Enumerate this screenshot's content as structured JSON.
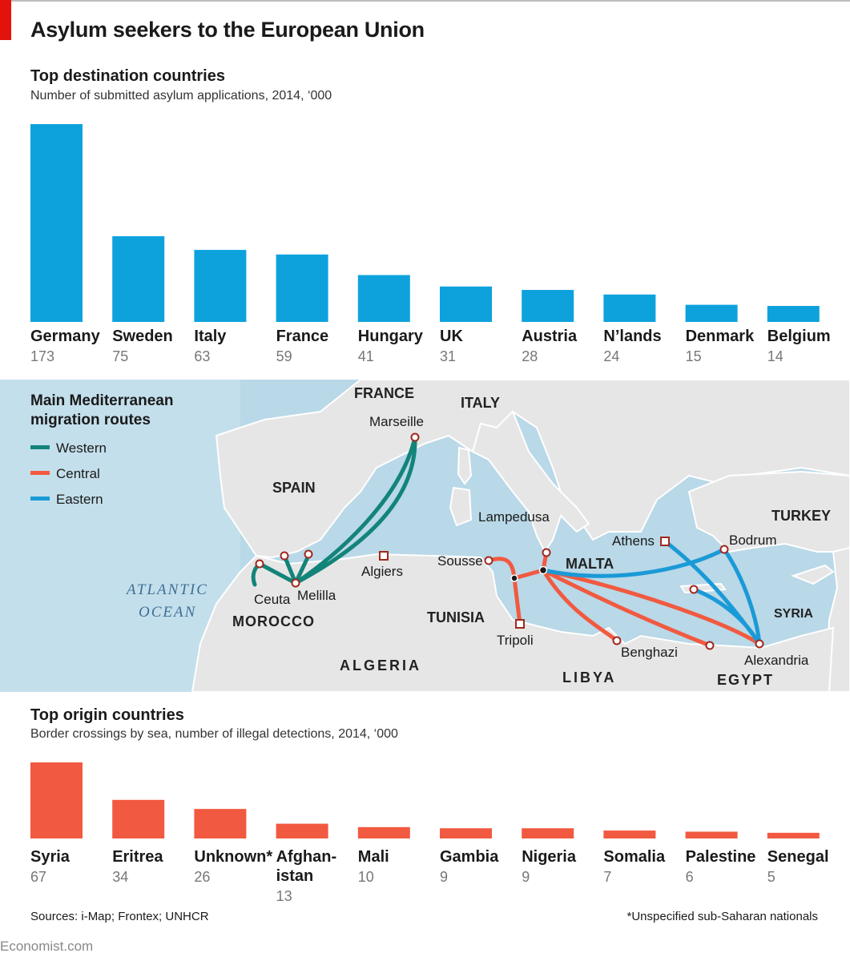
{
  "title": "Asylum seekers to the European Union",
  "colors": {
    "destination": "#0ea2dd",
    "origin": "#f15a40",
    "western": "#138479",
    "central": "#f15a40",
    "eastern": "#1a9ad6",
    "sea": "#b9d8e8",
    "land": "#e6e6e6",
    "accent": "#e3120b"
  },
  "chart_data": [
    {
      "type": "bar",
      "title": "Top destination countries",
      "subtitle": "Number of submitted asylum applications, 2014, ‘000",
      "categories": [
        "Germany",
        "Sweden",
        "Italy",
        "France",
        "Hungary",
        "UK",
        "Austria",
        "N’lands",
        "Denmark",
        "Belgium"
      ],
      "values": [
        173,
        75,
        63,
        59,
        41,
        31,
        28,
        24,
        15,
        14
      ],
      "value_labels": [
        "173",
        "75",
        "63",
        "59",
        "41",
        "31",
        "28",
        "24",
        "15",
        "14"
      ],
      "ylim": [
        0,
        173
      ],
      "grid": false
    },
    {
      "type": "bar",
      "title": "Top origin countries",
      "subtitle": "Border crossings by sea, number of illegal detections, 2014, ‘000",
      "categories": [
        "Syria",
        "Eritrea",
        "Unknown*",
        "Afghan-\nistan",
        "Mali",
        "Gambia",
        "Nigeria",
        "Somalia",
        "Palestine",
        "Senegal"
      ],
      "values": [
        67,
        34,
        26,
        13,
        10,
        9,
        9,
        7,
        6,
        5
      ],
      "value_labels": [
        "67",
        "34",
        "26",
        "13",
        "10",
        "9",
        "9",
        "7",
        "6",
        "5"
      ],
      "ylim": [
        0,
        67
      ],
      "grid": false
    }
  ],
  "map": {
    "legend_title_1": "Main Mediterranean",
    "legend_title_2": "migration routes",
    "legend": [
      "Western",
      "Central",
      "Eastern"
    ],
    "countries": {
      "france": "FRANCE",
      "italy": "ITALY",
      "spain": "SPAIN",
      "turkey": "TURKEY",
      "syria": "SYRIA",
      "morocco": "MOROCCO",
      "tunisia": "TUNISIA",
      "algeria": "ALGERIA",
      "libya": "LIBYA",
      "egypt": "EGYPT",
      "malta": "MALTA"
    },
    "ocean_1": "ATLANTIC",
    "ocean_2": "OCEAN",
    "places": {
      "marseille": "Marseille",
      "algiers": "Algiers",
      "ceuta": "Ceuta",
      "melilla": "Melilla",
      "lampedusa": "Lampedusa",
      "sousse": "Sousse",
      "tripoli": "Tripoli",
      "benghazi": "Benghazi",
      "athens": "Athens",
      "bodrum": "Bodrum",
      "alexandria": "Alexandria"
    }
  },
  "sources": "Sources: i-Map; Frontex; UNHCR",
  "footnote": "*Unspecified sub-Saharan nationals",
  "brand": "Economist.com"
}
